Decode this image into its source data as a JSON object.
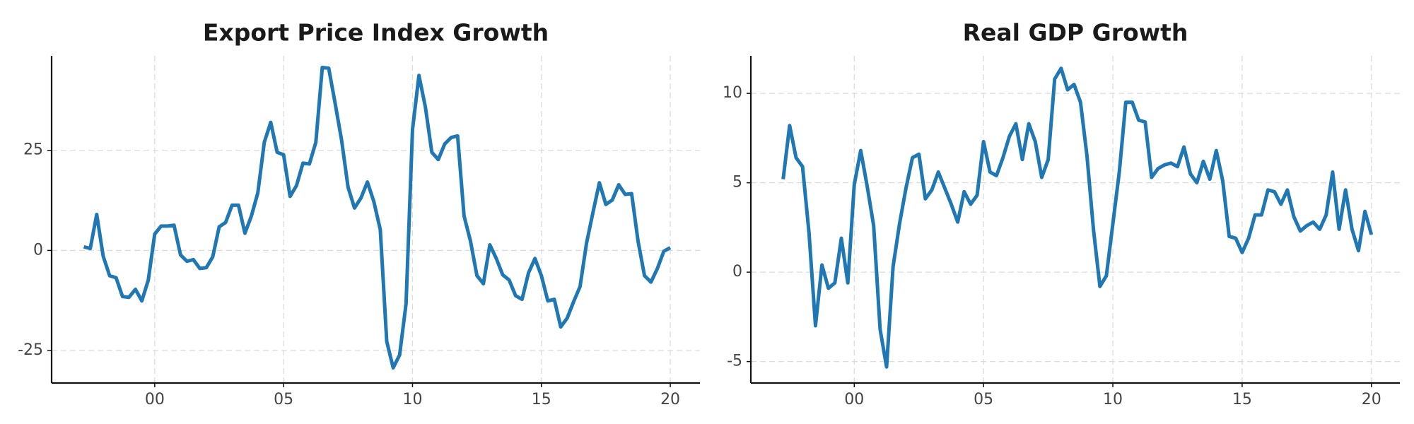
{
  "chart_data": [
    {
      "type": "line",
      "title": "Export Price Index Growth",
      "x": [
        1997.25,
        1997.5,
        1997.75,
        1998,
        1998.25,
        1998.5,
        1998.75,
        1999,
        1999.25,
        1999.5,
        1999.75,
        2000,
        2000.25,
        2000.5,
        2000.75,
        2001,
        2001.25,
        2001.5,
        2001.75,
        2002,
        2002.25,
        2002.5,
        2002.75,
        2003,
        2003.25,
        2003.5,
        2003.75,
        2004,
        2004.25,
        2004.5,
        2004.75,
        2005,
        2005.25,
        2005.5,
        2005.75,
        2006,
        2006.25,
        2006.5,
        2006.75,
        2007,
        2007.25,
        2007.5,
        2007.75,
        2008,
        2008.25,
        2008.5,
        2008.75,
        2009,
        2009.25,
        2009.5,
        2009.75,
        2010,
        2010.25,
        2010.5,
        2010.75,
        2011,
        2011.25,
        2011.5,
        2011.75,
        2012,
        2012.25,
        2012.5,
        2012.75,
        2013,
        2013.25,
        2013.5,
        2013.75,
        2014,
        2014.25,
        2014.5,
        2014.75,
        2015,
        2015.25,
        2015.5,
        2015.75,
        2016,
        2016.25,
        2016.5,
        2016.75,
        2017,
        2017.25,
        2017.5,
        2017.75,
        2018,
        2018.25,
        2018.5,
        2018.75,
        2019,
        2019.25,
        2019.5,
        2019.75,
        2020
      ],
      "series": [
        {
          "color": "#1f77b4",
          "values": [
            0.9,
            0.5,
            9,
            -1.4,
            -6.3,
            -6.8,
            -11.5,
            -11.7,
            -9.7,
            -12.6,
            -7.4,
            4.1,
            6.1,
            6.1,
            6.3,
            -1.1,
            -2.7,
            -2.3,
            -4.5,
            -4.3,
            -1.6,
            5.9,
            7.0,
            11.3,
            11.3,
            4.3,
            8.6,
            14.4,
            27,
            32,
            24.5,
            23.9,
            13.5,
            16.2,
            21.8,
            21.6,
            27,
            45.7,
            45.5,
            36.7,
            27.5,
            15.8,
            10.6,
            13.1,
            17.1,
            12.2,
            5.2,
            -22.7,
            -29.3,
            -26.1,
            -13.3,
            30.2,
            43.7,
            35.8,
            24.5,
            22.7,
            26.6,
            28.2,
            28.6,
            8.6,
            2.3,
            -6.3,
            -8.3,
            1.4,
            -2,
            -6.1,
            -7.4,
            -11.3,
            -12.2,
            -5.6,
            -2,
            -6.3,
            -12.6,
            -12.2,
            -19.1,
            -16.9,
            -12.8,
            -9,
            1.8,
            9.5,
            16.9,
            11.5,
            12.6,
            16.4,
            14,
            14.2,
            2.3,
            -6.3,
            -7.9,
            -4.5,
            -0.2,
            0.7
          ]
        }
      ],
      "xlim": [
        1996.0,
        2021.15
      ],
      "xticks": [
        {
          "value": 2000,
          "label": "00"
        },
        {
          "value": 2005,
          "label": "05"
        },
        {
          "value": 2010,
          "label": "10"
        },
        {
          "value": 2015,
          "label": "15"
        },
        {
          "value": 2020,
          "label": "20"
        }
      ],
      "ylim": [
        -33.1,
        48.6
      ],
      "yticks": [
        -25,
        0,
        25
      ],
      "grid": true
    },
    {
      "type": "line",
      "title": "Real GDP Growth",
      "x": [
        1997.25,
        1997.5,
        1997.75,
        1998,
        1998.25,
        1998.5,
        1998.75,
        1999,
        1999.25,
        1999.5,
        1999.75,
        2000,
        2000.25,
        2000.5,
        2000.75,
        2001,
        2001.25,
        2001.5,
        2001.75,
        2002,
        2002.25,
        2002.5,
        2002.75,
        2003,
        2003.25,
        2003.5,
        2003.75,
        2004,
        2004.25,
        2004.5,
        2004.75,
        2005,
        2005.25,
        2005.5,
        2005.75,
        2006,
        2006.25,
        2006.5,
        2006.75,
        2007,
        2007.25,
        2007.5,
        2007.75,
        2008,
        2008.25,
        2008.5,
        2008.75,
        2009,
        2009.25,
        2009.5,
        2009.75,
        2010,
        2010.25,
        2010.5,
        2010.75,
        2011,
        2011.25,
        2011.5,
        2011.75,
        2012,
        2012.25,
        2012.5,
        2012.75,
        2013,
        2013.25,
        2013.5,
        2013.75,
        2014,
        2014.25,
        2014.5,
        2014.75,
        2015,
        2015.25,
        2015.5,
        2015.75,
        2016,
        2016.25,
        2016.5,
        2016.75,
        2017,
        2017.25,
        2017.5,
        2017.75,
        2018,
        2018.25,
        2018.5,
        2018.75,
        2019,
        2019.25,
        2019.5,
        2019.75,
        2020
      ],
      "series": [
        {
          "color": "#1f77b4",
          "values": [
            5.2,
            8.2,
            6.4,
            5.9,
            2.2,
            -3,
            0.4,
            -0.9,
            -0.6,
            1.9,
            -0.6,
            4.9,
            6.8,
            4.8,
            2.6,
            -3.2,
            -5.3,
            0.3,
            2.7,
            4.7,
            6.4,
            6.6,
            4.1,
            4.6,
            5.6,
            4.7,
            3.8,
            2.8,
            4.5,
            3.8,
            4.3,
            7.3,
            5.6,
            5.4,
            6.4,
            7.6,
            8.3,
            6.3,
            8.3,
            7.3,
            5.3,
            6.3,
            10.8,
            11.4,
            10.2,
            10.5,
            9.5,
            6.5,
            2.4,
            -0.8,
            -0.2,
            2.7,
            5.6,
            9.5,
            9.5,
            8.5,
            8.4,
            5.3,
            5.8,
            6,
            6.1,
            5.9,
            7,
            5.5,
            5,
            6.2,
            5.2,
            6.8,
            5.1,
            2,
            1.9,
            1.1,
            1.9,
            3.2,
            3.2,
            4.6,
            4.5,
            3.8,
            4.6,
            3.1,
            2.3,
            2.6,
            2.8,
            2.4,
            3.2,
            5.6,
            2.4,
            4.6,
            2.4,
            1.2,
            3.4,
            2.1
          ]
        }
      ],
      "xlim": [
        1996.0,
        2021.1
      ],
      "xticks": [
        {
          "value": 2000,
          "label": "00"
        },
        {
          "value": 2005,
          "label": "05"
        },
        {
          "value": 2010,
          "label": "10"
        },
        {
          "value": 2015,
          "label": "15"
        },
        {
          "value": 2020,
          "label": "20"
        }
      ],
      "ylim": [
        -6.2,
        12.1
      ],
      "yticks": [
        -5,
        0,
        5,
        10
      ],
      "grid": true
    }
  ]
}
